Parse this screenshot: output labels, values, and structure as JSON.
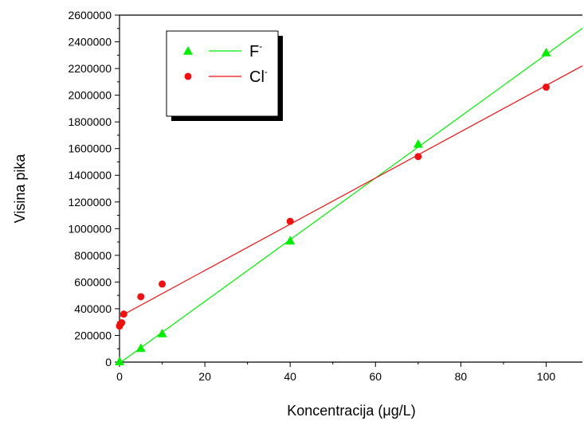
{
  "chart_data": {
    "type": "scatter",
    "xlabel": "Koncentracija (μg/L)",
    "ylabel": "Visina pika",
    "xlim": [
      0,
      108.5
    ],
    "ylim": [
      0,
      2600000
    ],
    "x_ticks": [
      0,
      20,
      40,
      60,
      80,
      100
    ],
    "y_ticks": [
      0,
      200000,
      400000,
      600000,
      800000,
      1000000,
      1200000,
      1400000,
      1600000,
      1800000,
      2000000,
      2200000,
      2400000,
      2600000
    ],
    "grid": false,
    "legend_position": "top-left",
    "series": [
      {
        "name": "F",
        "name_superscript": "-",
        "marker": "triangle",
        "color": "#00ee00",
        "x": [
          0,
          5,
          10,
          40,
          70,
          100
        ],
        "y": [
          5000,
          105000,
          215000,
          910000,
          1635000,
          2320000
        ],
        "fit": {
          "slope": 23130,
          "intercept": -8000
        }
      },
      {
        "name": "Cl",
        "name_superscript": "-",
        "marker": "circle",
        "color": "#ee1111",
        "x": [
          0,
          0.2,
          0.5,
          1,
          5,
          10,
          40,
          70,
          100
        ],
        "y": [
          270000,
          285000,
          295000,
          360000,
          490000,
          585000,
          1055000,
          1540000,
          2060000
        ],
        "fit": {
          "slope": 17330,
          "intercept": 340000
        }
      }
    ]
  }
}
